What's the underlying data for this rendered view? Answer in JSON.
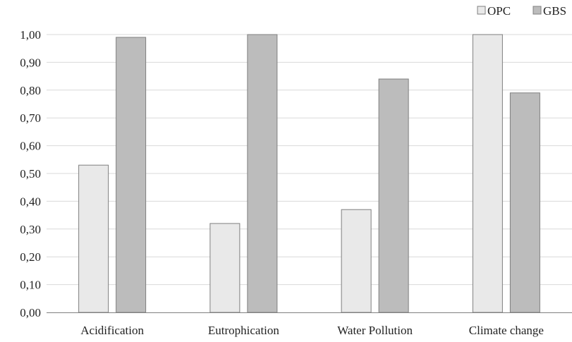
{
  "chart_data": {
    "type": "bar",
    "title": "",
    "xlabel": "",
    "ylabel": "",
    "categories": [
      "Acidification",
      "Eutrophication",
      "Water Pollution",
      "Climate change"
    ],
    "series": [
      {
        "name": "OPC",
        "values": [
          0.53,
          0.32,
          0.37,
          1.0
        ],
        "color": "#e9e9e9",
        "edge": "#7f7f7f"
      },
      {
        "name": "GBS",
        "values": [
          0.99,
          1.0,
          0.84,
          0.79
        ],
        "color": "#bcbcbc",
        "edge": "#7f7f7f"
      }
    ],
    "ylim": [
      0,
      1.0
    ],
    "yticks": [
      "0,00",
      "0,10",
      "0,20",
      "0,30",
      "0,40",
      "0,50",
      "0,60",
      "0,70",
      "0,80",
      "0,90",
      "1,00"
    ],
    "grid": true,
    "legend_position": "top-right",
    "colors": {
      "grid": "#d9d9d9",
      "axis": "#808080"
    }
  }
}
